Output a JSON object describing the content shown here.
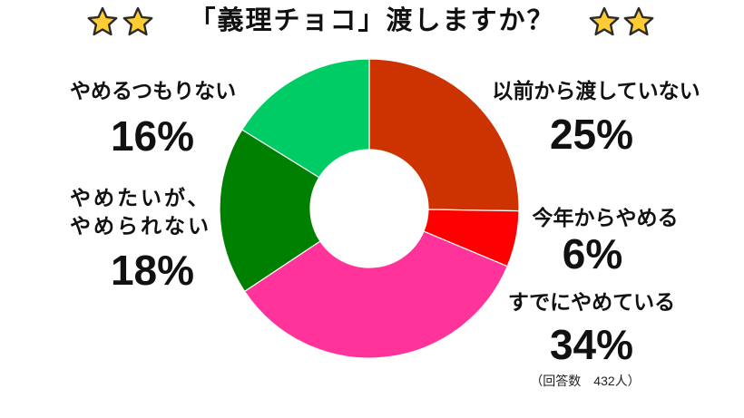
{
  "title_icons": {
    "left": [
      "star-icon",
      "star-icon"
    ],
    "right": [
      "star-icon",
      "star-icon"
    ],
    "fill": "#FFCC33",
    "outline": "#2B2B2B"
  },
  "chart_data": {
    "type": "pie",
    "donut": true,
    "title": "「義理チョコ」渡しますか？",
    "categories": [
      "以前から渡していない",
      "今年からやめる",
      "すでにやめている",
      "やめたいが、\nやめられない",
      "やめるつもりない"
    ],
    "values": [
      25,
      6,
      34,
      18,
      16
    ],
    "unit": "%",
    "colors": [
      "#CC3300",
      "#FF0000",
      "#FF3399",
      "#008000",
      "#00CC66"
    ],
    "legend": "none",
    "annotation": "（回答数　432人）"
  }
}
